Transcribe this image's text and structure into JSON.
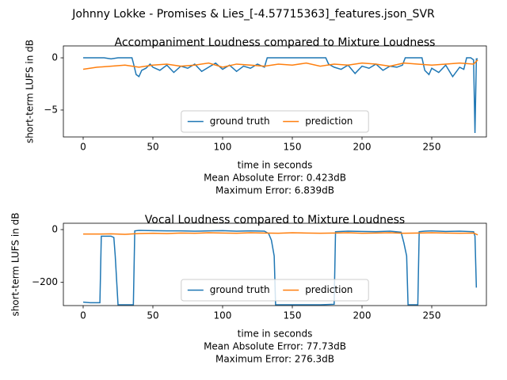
{
  "title": "Johnny Lokke - Promises & Lies_[-4.57715363]_features.json_SVR",
  "chart_data": [
    {
      "type": "line",
      "title": "Accompaniment Loudness compared to Mixture Loudness",
      "xlabel": "time in seconds",
      "annotations": [
        "Mean Absolute Error: 0.423dB",
        "Maximum Error: 6.839dB"
      ],
      "ylabel": "short-term LUFS in dB",
      "xlim": [
        -14.2,
        289.2
      ],
      "xticks": [
        0,
        50,
        100,
        150,
        200,
        250
      ],
      "ylim": [
        -7.58,
        1.14
      ],
      "yticks": [
        {
          "value": -5,
          "label": "−5"
        },
        0
      ],
      "legend": "lower center",
      "series": [
        {
          "name": "ground truth",
          "color": "#1f77b4",
          "x": [
            0,
            5,
            10,
            15,
            20,
            25,
            30,
            35,
            36,
            38,
            40,
            42,
            45,
            48,
            50,
            55,
            60,
            65,
            70,
            75,
            80,
            85,
            90,
            95,
            100,
            105,
            110,
            115,
            120,
            125,
            130,
            132,
            135,
            140,
            150,
            160,
            170,
            174,
            176,
            180,
            185,
            190,
            195,
            200,
            205,
            210,
            215,
            220,
            225,
            229,
            231,
            235,
            240,
            243,
            245,
            248,
            250,
            255,
            260,
            265,
            270,
            273,
            275,
            278,
            280,
            281,
            282,
            283
          ],
          "values": [
            0,
            0,
            0,
            0,
            -0.1,
            0,
            0,
            0,
            -0.5,
            -1.6,
            -1.8,
            -1.2,
            -1.0,
            -0.6,
            -0.9,
            -1.2,
            -0.7,
            -1.4,
            -0.8,
            -1.0,
            -0.6,
            -1.3,
            -0.9,
            -0.5,
            -1.1,
            -0.7,
            -1.3,
            -0.8,
            -1.0,
            -0.6,
            -0.9,
            0,
            0,
            0,
            0,
            0,
            0,
            0,
            -0.6,
            -0.9,
            -1.1,
            -0.7,
            -1.5,
            -0.8,
            -1.0,
            -0.6,
            -1.2,
            -0.8,
            -0.9,
            -0.7,
            0,
            0,
            0,
            0,
            -1.2,
            -1.6,
            -1.0,
            -1.4,
            -0.7,
            -1.8,
            -0.9,
            -1.1,
            0,
            0,
            -0.2,
            -7.2,
            -0.1,
            -0.1
          ]
        },
        {
          "name": "prediction",
          "color": "#ff7f0e",
          "x": [
            0,
            10,
            20,
            30,
            40,
            50,
            60,
            70,
            80,
            90,
            100,
            110,
            120,
            130,
            140,
            150,
            160,
            170,
            180,
            190,
            200,
            210,
            220,
            230,
            240,
            250,
            260,
            270,
            280,
            283
          ],
          "values": [
            -1.1,
            -0.9,
            -0.8,
            -0.7,
            -0.9,
            -0.7,
            -0.6,
            -0.8,
            -0.7,
            -0.5,
            -0.9,
            -0.6,
            -0.7,
            -0.8,
            -0.6,
            -0.7,
            -0.5,
            -0.8,
            -0.6,
            -0.7,
            -0.5,
            -0.6,
            -0.8,
            -0.5,
            -0.6,
            -0.7,
            -0.6,
            -0.5,
            -0.6,
            -0.2
          ]
        }
      ]
    },
    {
      "type": "line",
      "title": "Vocal Loudness compared to Mixture Loudness",
      "xlabel": "time in seconds",
      "annotations": [
        "Mean Absolute Error: 77.73dB",
        "Maximum Error: 276.3dB"
      ],
      "ylabel": "short-term LUFS in dB",
      "xlim": [
        -14.2,
        289.2
      ],
      "xticks": [
        0,
        50,
        100,
        150,
        200,
        250
      ],
      "ylim": [
        -288,
        24
      ],
      "yticks": [
        {
          "value": -200,
          "label": "−200"
        },
        0
      ],
      "legend": "lower center",
      "series": [
        {
          "name": "ground truth",
          "color": "#1f77b4",
          "x": [
            0,
            5,
            10,
            12,
            13,
            15,
            20,
            22,
            23,
            25,
            30,
            35,
            36,
            37,
            40,
            50,
            60,
            70,
            80,
            90,
            100,
            110,
            120,
            130,
            133,
            135,
            137,
            138,
            140,
            150,
            160,
            170,
            180,
            181,
            185,
            190,
            200,
            210,
            220,
            228,
            230,
            232,
            233,
            235,
            240,
            241,
            245,
            250,
            260,
            270,
            280,
            281,
            282
          ],
          "values": [
            -275,
            -277,
            -277,
            -277,
            -25,
            -25,
            -25,
            -30,
            -100,
            -285,
            -285,
            -285,
            -285,
            -5,
            -3,
            -4,
            -5,
            -5,
            -6,
            -5,
            -4,
            -6,
            -5,
            -6,
            -15,
            -40,
            -100,
            -285,
            -285,
            -285,
            -285,
            -285,
            -283,
            -8,
            -7,
            -6,
            -7,
            -8,
            -6,
            -10,
            -50,
            -100,
            -285,
            -285,
            -285,
            -8,
            -6,
            -5,
            -7,
            -6,
            -8,
            -25,
            -220
          ]
        },
        {
          "name": "prediction",
          "color": "#ff7f0e",
          "x": [
            0,
            10,
            20,
            30,
            40,
            50,
            60,
            70,
            80,
            90,
            100,
            110,
            120,
            130,
            140,
            150,
            160,
            170,
            180,
            190,
            200,
            210,
            220,
            230,
            240,
            250,
            260,
            270,
            280,
            283
          ],
          "values": [
            -17,
            -17,
            -16,
            -18,
            -15,
            -14,
            -15,
            -13,
            -14,
            -12,
            -13,
            -14,
            -12,
            -13,
            -14,
            -12,
            -13,
            -14,
            -13,
            -12,
            -14,
            -13,
            -12,
            -14,
            -13,
            -12,
            -13,
            -14,
            -13,
            -20
          ]
        }
      ]
    }
  ]
}
